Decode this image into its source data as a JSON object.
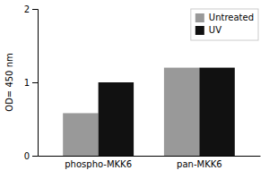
{
  "chart_data": {
    "type": "bar",
    "categories": [
      "phospho-MKK6",
      "pan-MKK6"
    ],
    "series": [
      {
        "name": "Untreated",
        "color": "#999999",
        "values": [
          0.58,
          1.2
        ]
      },
      {
        "name": "UV",
        "color": "#111111",
        "values": [
          1.0,
          1.2
        ]
      }
    ],
    "ylabel": "OD= 450 nm",
    "ylim": [
      0,
      2
    ],
    "yticks": [
      0,
      1,
      2
    ],
    "grid": false,
    "legend": "top-right"
  }
}
